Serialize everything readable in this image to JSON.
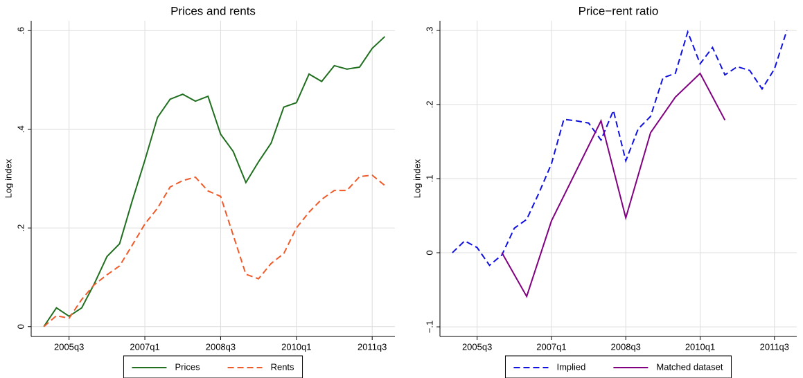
{
  "chart_data": [
    {
      "type": "line",
      "title": "Prices and rents",
      "y_label": "Log index",
      "x": [
        180,
        181,
        182,
        183,
        184,
        185,
        186,
        187,
        188,
        189,
        190,
        191,
        192,
        193,
        194,
        195,
        196,
        197,
        198,
        199,
        200,
        201,
        202,
        203,
        204,
        205,
        206,
        207
      ],
      "xlim": [
        179,
        207.8
      ],
      "xticks": [
        {
          "value": 182,
          "label": "2005q3"
        },
        {
          "value": 188,
          "label": "2007q1"
        },
        {
          "value": 194,
          "label": "2008q3"
        },
        {
          "value": 200,
          "label": "2010q1"
        },
        {
          "value": 206,
          "label": "2011q3"
        }
      ],
      "ylim": [
        -0.02,
        0.62
      ],
      "yticks": [
        0,
        {
          "value": 0.2,
          "label": ".2"
        },
        {
          "value": 0.4,
          "label": ".4"
        },
        {
          "value": 0.6,
          "label": ".6"
        }
      ],
      "grid": true,
      "legend": "bottom",
      "series": [
        {
          "name": "Prices",
          "color": "#1f6f1f",
          "dash": false,
          "values": [
            0,
            0.038,
            0.021,
            0.038,
            0.087,
            0.142,
            0.168,
            0.255,
            0.337,
            0.424,
            0.461,
            0.471,
            0.457,
            0.467,
            0.39,
            0.355,
            0.292,
            0.334,
            0.372,
            0.445,
            0.454,
            0.512,
            0.497,
            0.529,
            0.522,
            0.526,
            0.564,
            0.588
          ]
        },
        {
          "name": "Rents",
          "color": "#f05a28",
          "dash": true,
          "values": [
            0,
            0.022,
            0.017,
            0.055,
            0.085,
            0.105,
            0.123,
            0.165,
            0.208,
            0.24,
            0.283,
            0.296,
            0.303,
            0.275,
            0.264,
            0.185,
            0.106,
            0.097,
            0.128,
            0.148,
            0.2,
            0.232,
            0.258,
            0.276,
            0.276,
            0.304,
            0.307,
            0.286
          ]
        }
      ]
    },
    {
      "type": "line",
      "title": "Price−rent ratio",
      "y_label": "Log index",
      "x": [
        180,
        181,
        182,
        183,
        184,
        185,
        186,
        187,
        188,
        189,
        190,
        191,
        192,
        193,
        194,
        195,
        196,
        197,
        198,
        199,
        200,
        201,
        202,
        203,
        204,
        205,
        206,
        207
      ],
      "xlim": [
        179,
        207.8
      ],
      "xticks": [
        {
          "value": 182,
          "label": "2005q3"
        },
        {
          "value": 188,
          "label": "2007q1"
        },
        {
          "value": 194,
          "label": "2008q3"
        },
        {
          "value": 200,
          "label": "2010q1"
        },
        {
          "value": 206,
          "label": "2011q3"
        }
      ],
      "ylim": [
        -0.113,
        0.313
      ],
      "yticks": [
        {
          "value": -0.1,
          "label": "−.1"
        },
        0,
        {
          "value": 0.1,
          "label": ".1"
        },
        {
          "value": 0.2,
          "label": ".2"
        },
        {
          "value": 0.3,
          "label": ".3"
        }
      ],
      "grid": true,
      "legend": "bottom",
      "series": [
        {
          "name": "Implied",
          "color": "#1010e0",
          "dash": true,
          "values": [
            0,
            0.016,
            0.007,
            -0.017,
            -0.003,
            0.033,
            0.045,
            0.081,
            0.12,
            0.18,
            0.178,
            0.175,
            0.152,
            0.192,
            0.124,
            0.167,
            0.184,
            0.236,
            0.242,
            0.298,
            0.255,
            0.277,
            0.24,
            0.251,
            0.246,
            0.221,
            0.248,
            0.3
          ]
        },
        {
          "name": "Matched dataset",
          "color": "#800080",
          "dash": false,
          "x": [
            184,
            186,
            188,
            192,
            194,
            196,
            198,
            200,
            202
          ],
          "values": [
            0,
            -0.059,
            0.043,
            0.178,
            0.047,
            0.162,
            0.21,
            0.242,
            0.179
          ]
        }
      ]
    }
  ]
}
